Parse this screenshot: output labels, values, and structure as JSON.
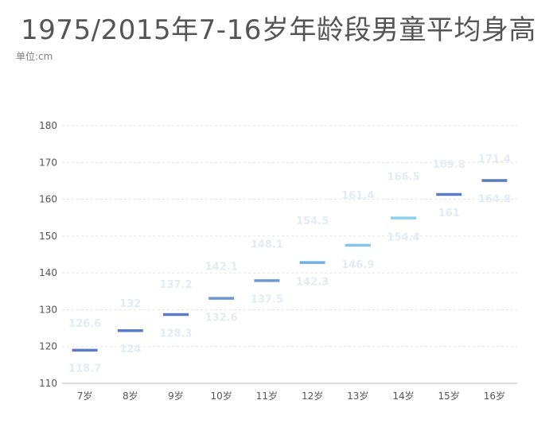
{
  "chart_data": {
    "type": "bar",
    "subtype": "range-markers",
    "title": "1975/2015年7-16岁年龄段男童平均身高",
    "unit_label": "单位:cm",
    "categories": [
      "7岁",
      "8岁",
      "9岁",
      "10岁",
      "11岁",
      "12岁",
      "13岁",
      "14岁",
      "15岁",
      "16岁"
    ],
    "series": [
      {
        "values": [
          118.7,
          124,
          128.3,
          132.6,
          137.5,
          142.3,
          146.9,
          154.4,
          161,
          164.8
        ]
      },
      {
        "values": [
          126.6,
          132,
          137.2,
          142.1,
          148.1,
          154.5,
          161.4,
          166.5,
          169.8,
          171.4
        ]
      }
    ],
    "markers": [
      119,
      124.3,
      128.7,
      133.1,
      137.9,
      142.8,
      147.5,
      154.9,
      161.3,
      165.1
    ],
    "marker_colors": [
      "#5b7bc4",
      "#5b7bc4",
      "#5b7bc4",
      "#6e96d4",
      "#6e96d4",
      "#74aee0",
      "#84c4ea",
      "#8fd0ef",
      "#5b7bc4",
      "#5b7bc4"
    ],
    "ylim": [
      110,
      180
    ],
    "yticks": [
      110,
      120,
      130,
      140,
      150,
      160,
      170,
      180
    ],
    "grid": true,
    "label_color": "#e3ebf5"
  }
}
